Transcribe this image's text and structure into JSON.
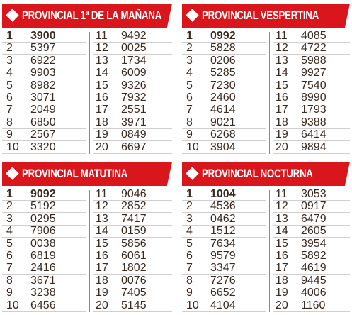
{
  "panels": [
    {
      "title": "PROVINCIAL 1ª DE LA MAÑANA",
      "rows": [
        [
          "1",
          "3900"
        ],
        [
          "2",
          "5397"
        ],
        [
          "3",
          "6922"
        ],
        [
          "4",
          "9903"
        ],
        [
          "5",
          "8982"
        ],
        [
          "6",
          "3071"
        ],
        [
          "7",
          "2049"
        ],
        [
          "8",
          "6850"
        ],
        [
          "9",
          "2567"
        ],
        [
          "10",
          "3320"
        ],
        [
          "11",
          "9492"
        ],
        [
          "12",
          "0025"
        ],
        [
          "13",
          "1734"
        ],
        [
          "14",
          "6009"
        ],
        [
          "15",
          "9326"
        ],
        [
          "16",
          "7932"
        ],
        [
          "17",
          "2551"
        ],
        [
          "18",
          "3971"
        ],
        [
          "19",
          "0849"
        ],
        [
          "20",
          "6697"
        ]
      ]
    },
    {
      "title": "PROVINCIAL VESPERTINA",
      "rows": [
        [
          "1",
          "0992"
        ],
        [
          "2",
          "5828"
        ],
        [
          "3",
          "0206"
        ],
        [
          "4",
          "5285"
        ],
        [
          "5",
          "7230"
        ],
        [
          "6",
          "2460"
        ],
        [
          "7",
          "4614"
        ],
        [
          "8",
          "9021"
        ],
        [
          "9",
          "6268"
        ],
        [
          "10",
          "3904"
        ],
        [
          "11",
          "4085"
        ],
        [
          "12",
          "4722"
        ],
        [
          "13",
          "5988"
        ],
        [
          "14",
          "9927"
        ],
        [
          "15",
          "7540"
        ],
        [
          "16",
          "8990"
        ],
        [
          "17",
          "1793"
        ],
        [
          "18",
          "9388"
        ],
        [
          "19",
          "6414"
        ],
        [
          "20",
          "9894"
        ]
      ]
    },
    {
      "title": "PROVINCIAL MATUTINA",
      "rows": [
        [
          "1",
          "9092"
        ],
        [
          "2",
          "5192"
        ],
        [
          "3",
          "0295"
        ],
        [
          "4",
          "7906"
        ],
        [
          "5",
          "0038"
        ],
        [
          "6",
          "6819"
        ],
        [
          "7",
          "2416"
        ],
        [
          "8",
          "3671"
        ],
        [
          "9",
          "3238"
        ],
        [
          "10",
          "6456"
        ],
        [
          "11",
          "9046"
        ],
        [
          "12",
          "2852"
        ],
        [
          "13",
          "7417"
        ],
        [
          "14",
          "0159"
        ],
        [
          "15",
          "5856"
        ],
        [
          "16",
          "6061"
        ],
        [
          "17",
          "1802"
        ],
        [
          "18",
          "0076"
        ],
        [
          "19",
          "7405"
        ],
        [
          "20",
          "5145"
        ]
      ]
    },
    {
      "title": "PROVINCIAL NOCTURNA",
      "rows": [
        [
          "1",
          "1004"
        ],
        [
          "2",
          "4536"
        ],
        [
          "3",
          "0462"
        ],
        [
          "4",
          "1512"
        ],
        [
          "5",
          "7634"
        ],
        [
          "6",
          "9579"
        ],
        [
          "7",
          "3347"
        ],
        [
          "8",
          "7276"
        ],
        [
          "9",
          "6652"
        ],
        [
          "10",
          "4104"
        ],
        [
          "11",
          "3053"
        ],
        [
          "12",
          "0917"
        ],
        [
          "13",
          "6479"
        ],
        [
          "14",
          "2605"
        ],
        [
          "15",
          "3954"
        ],
        [
          "16",
          "5892"
        ],
        [
          "17",
          "4619"
        ],
        [
          "18",
          "9445"
        ],
        [
          "19",
          "4006"
        ],
        [
          "20",
          "1160"
        ]
      ]
    }
  ]
}
